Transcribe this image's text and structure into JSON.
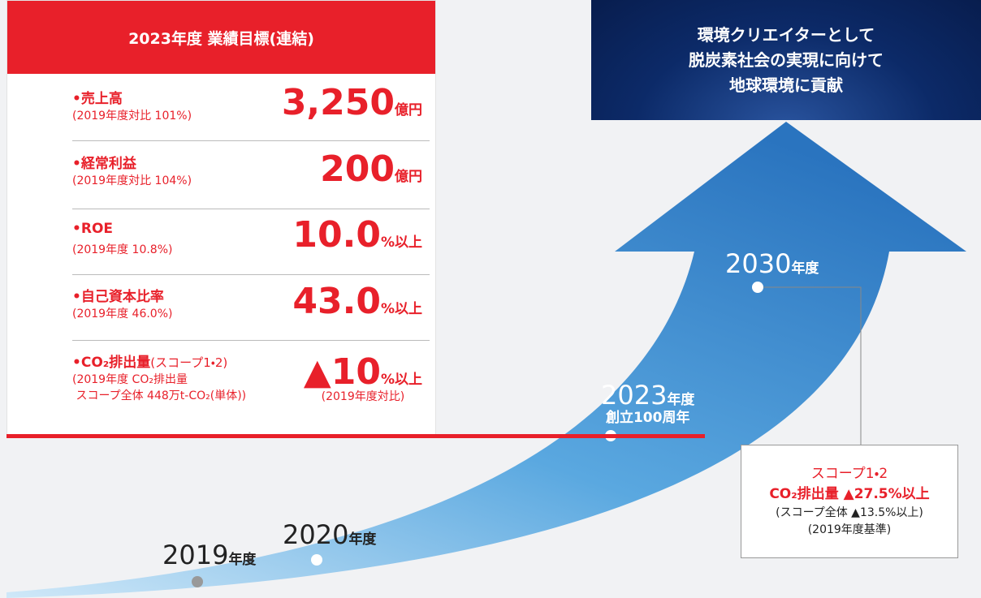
{
  "targets": {
    "title": "2023年度 業績目標(連結)",
    "items": [
      {
        "label": "•売上高",
        "note": "(2019年度対比 101%)",
        "value": "3,250",
        "unit": "億円"
      },
      {
        "label": "•経常利益",
        "note": "(2019年度対比 104%)",
        "value": "200",
        "unit": "億円"
      },
      {
        "label": "•ROE",
        "note": "(2019年度 10.8%)",
        "value": "10.0",
        "unit": "%以上"
      },
      {
        "label": "•自己資本比率",
        "note": "(2019年度 46.0%)",
        "value": "43.0",
        "unit": "%以上"
      },
      {
        "label": "•CO₂排出量",
        "label_sub": "(スコープ1・2)",
        "note": "(2019年度 CO₂排出量\n スコープ全体 448万t-CO₂(単体))",
        "value": "▲10",
        "unit": "%以上",
        "value_note": "(2019年度対比)"
      }
    ]
  },
  "vision": [
    "環境クリエイターとして",
    "脱炭素社会の実現に向けて",
    "地球環境に貢献"
  ],
  "milestones": [
    {
      "year": "2019",
      "suffix": "年度"
    },
    {
      "year": "2020",
      "suffix": "年度"
    },
    {
      "year": "2023",
      "suffix": "年度",
      "detail": "創立100周年"
    },
    {
      "year": "2030",
      "suffix": "年度"
    }
  ],
  "goal2030": {
    "line1": "スコープ1・2",
    "line2": "CO₂排出量 ▲27.5%以上",
    "line3": "(スコープ全体 ▲13.5%以上)",
    "line4": "(2019年度基準)"
  }
}
